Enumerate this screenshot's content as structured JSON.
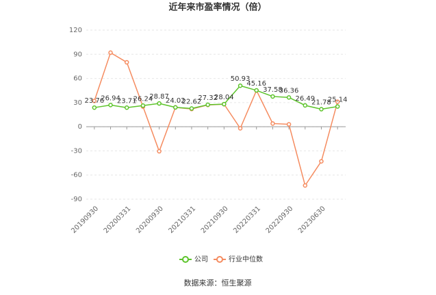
{
  "chart_data": {
    "type": "line",
    "title": "近年来市盈率情况（倍）",
    "source": "数据来源：恒生聚源",
    "categories": [
      "20190930",
      null,
      "20200331",
      null,
      "20200930",
      null,
      "20210331",
      null,
      "20210930",
      null,
      "20220331",
      null,
      "20220930",
      null,
      "20230630",
      null
    ],
    "series": [
      {
        "name": "公司",
        "color": "#5cc42a",
        "values": [
          23.76,
          26.94,
          23.71,
          26.24,
          28.87,
          24.02,
          22.62,
          27.32,
          28.04,
          50.93,
          45.16,
          37.58,
          36.36,
          26.49,
          21.78,
          25.14
        ]
      },
      {
        "name": "行业中位数",
        "color": "#f58b5f",
        "values": [
          32,
          92,
          80,
          25,
          -30.5,
          24,
          22,
          27,
          28,
          -2,
          45,
          4,
          3,
          -73,
          -43,
          31
        ]
      }
    ],
    "ylim": [
      -90,
      120
    ],
    "yticks": [
      -90,
      -60,
      -30,
      0,
      30,
      60,
      90,
      120
    ],
    "grid": true,
    "legend": "bottom"
  }
}
